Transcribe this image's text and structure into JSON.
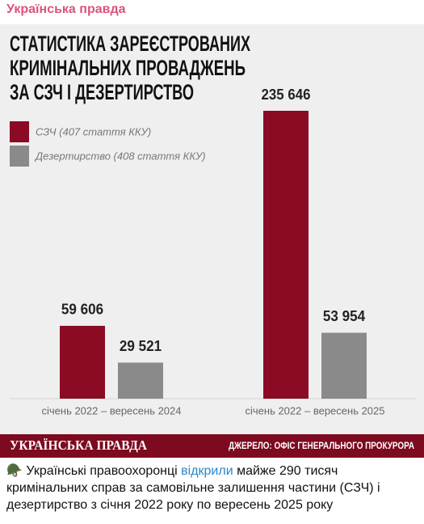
{
  "channel": "Українська правда",
  "chart_data": {
    "type": "bar",
    "title": [
      "СТАТИСТИКА ЗАРЕЄСТРОВАНИХ",
      "КРИМІНАЛЬНИХ ПРОВАДЖЕНЬ",
      "ЗА СЗЧ І ДЕЗЕРТИРСТВО"
    ],
    "categories": [
      "січень 2022 – вересень 2024",
      "січень 2022 – вересень 2025"
    ],
    "series": [
      {
        "name": "СЗЧ (407 стаття ККУ)",
        "color": "#8b0a24",
        "values": [
          59606,
          235646
        ],
        "value_labels": [
          "59 606",
          "235 646"
        ]
      },
      {
        "name": "Дезертирство (408 стаття ККУ)",
        "color": "#8a8a8a",
        "values": [
          29521,
          53954
        ],
        "value_labels": [
          "29 521",
          "53 954"
        ]
      }
    ],
    "brand": "УКРАЇНСЬКА ПРАВДА",
    "source": "ДЖЕРЕЛО: ОФІС ГЕНЕРАЛЬНОГО ПРОКУРОРА"
  },
  "post": {
    "parts": [
      "🪖 Українські правоохоронці ",
      "відкрили",
      " майже 290 тисяч кримінальних справ за самовільне залишення частини (СЗЧ) і дезертирство з січня 2022 року по вересень 2025 року"
    ]
  }
}
